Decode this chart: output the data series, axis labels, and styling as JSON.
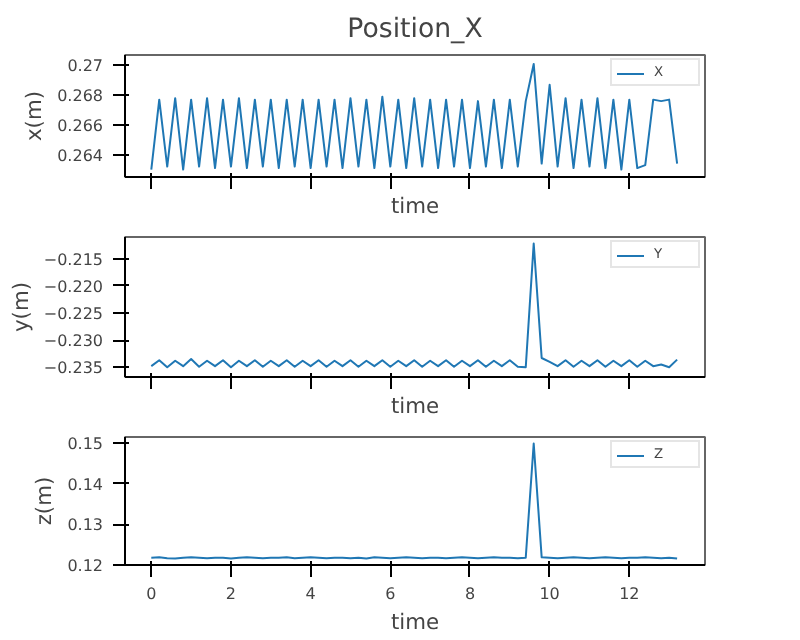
{
  "chart_data": [
    {
      "type": "line",
      "title": "Position_X",
      "xlabel": "time",
      "ylabel": "x(m)",
      "legend": "top right",
      "tick_labels": "y",
      "xlim": [
        -0.66,
        13.9
      ],
      "xticks": [
        0,
        2,
        4,
        6,
        8,
        10,
        12
      ],
      "ylim": [
        0.2625,
        0.2707
      ],
      "yticks": [
        0.264,
        0.266,
        0.268,
        0.27
      ],
      "series": [
        {
          "name": "X",
          "color": "#1f77b4",
          "x": [
            0,
            0.2,
            0.4,
            0.6,
            0.8,
            1,
            1.2,
            1.4,
            1.6,
            1.8,
            2,
            2.2,
            2.4,
            2.6,
            2.8,
            3,
            3.2,
            3.4,
            3.6,
            3.8,
            4,
            4.2,
            4.4,
            4.6,
            4.8,
            5,
            5.2,
            5.4,
            5.6,
            5.8,
            6,
            6.2,
            6.4,
            6.6,
            6.8,
            7,
            7.2,
            7.4,
            7.6,
            7.8,
            8,
            8.2,
            8.4,
            8.6,
            8.8,
            9,
            9.2,
            9.4,
            9.6,
            9.8,
            10,
            10.2,
            10.4,
            10.6,
            10.8,
            11,
            11.2,
            11.4,
            11.6,
            11.8,
            12,
            12.2,
            12.4,
            12.6,
            12.8,
            13,
            13.2
          ],
          "values": [
            0.263,
            0.2677,
            0.2632,
            0.2678,
            0.263,
            0.2677,
            0.2632,
            0.2678,
            0.2631,
            0.2677,
            0.2632,
            0.2678,
            0.2631,
            0.2677,
            0.2632,
            0.2677,
            0.2631,
            0.2677,
            0.2632,
            0.2677,
            0.2631,
            0.2677,
            0.2632,
            0.2677,
            0.2631,
            0.2678,
            0.2632,
            0.2677,
            0.2631,
            0.2679,
            0.2632,
            0.2677,
            0.2631,
            0.2678,
            0.2632,
            0.2677,
            0.2631,
            0.2677,
            0.2632,
            0.2677,
            0.2631,
            0.2676,
            0.2632,
            0.2677,
            0.2631,
            0.2677,
            0.2632,
            0.2676,
            0.2701,
            0.2634,
            0.2687,
            0.2632,
            0.2678,
            0.2631,
            0.2677,
            0.2632,
            0.2678,
            0.2631,
            0.2677,
            0.263,
            0.2677,
            0.2631,
            0.2633,
            0.2677,
            0.2676,
            0.2677,
            0.2634
          ]
        }
      ]
    },
    {
      "type": "line",
      "xlabel": "time",
      "ylabel": "y(m)",
      "legend": "top right",
      "tick_labels": "y",
      "xlim": [
        -0.66,
        13.9
      ],
      "xticks": [
        0,
        2,
        4,
        6,
        8,
        10,
        12
      ],
      "ylim": [
        -0.2368,
        -0.211
      ],
      "yticks": [
        {
          "value": -0.235,
          "label": "−0.235"
        },
        {
          "value": -0.23,
          "label": "−0.230"
        },
        {
          "value": -0.225,
          "label": "−0.225"
        },
        {
          "value": -0.22,
          "label": "−0.220"
        },
        {
          "value": -0.215,
          "label": "−0.215"
        }
      ],
      "series": [
        {
          "name": "Y",
          "color": "#1f77b4",
          "x": [
            0,
            0.2,
            0.4,
            0.6,
            0.8,
            1,
            1.2,
            1.4,
            1.6,
            1.8,
            2,
            2.2,
            2.4,
            2.6,
            2.8,
            3,
            3.2,
            3.4,
            3.6,
            3.8,
            4,
            4.2,
            4.4,
            4.6,
            4.8,
            5,
            5.2,
            5.4,
            5.6,
            5.8,
            6,
            6.2,
            6.4,
            6.6,
            6.8,
            7,
            7.2,
            7.4,
            7.6,
            7.8,
            8,
            8.2,
            8.4,
            8.6,
            8.8,
            9,
            9.2,
            9.4,
            9.6,
            9.8,
            10,
            10.2,
            10.4,
            10.6,
            10.8,
            11,
            11.2,
            11.4,
            11.6,
            11.8,
            12,
            12.2,
            12.4,
            12.6,
            12.8,
            13,
            13.2
          ],
          "values": [
            -0.2348,
            -0.2337,
            -0.235,
            -0.2338,
            -0.2348,
            -0.2335,
            -0.2349,
            -0.2338,
            -0.2348,
            -0.2337,
            -0.235,
            -0.2338,
            -0.2348,
            -0.2337,
            -0.2349,
            -0.2338,
            -0.2348,
            -0.2337,
            -0.2349,
            -0.2338,
            -0.2348,
            -0.2337,
            -0.2349,
            -0.2338,
            -0.2348,
            -0.2337,
            -0.2349,
            -0.2338,
            -0.2348,
            -0.2337,
            -0.2349,
            -0.2338,
            -0.2348,
            -0.2337,
            -0.2349,
            -0.2338,
            -0.2348,
            -0.2337,
            -0.2349,
            -0.2338,
            -0.2348,
            -0.2337,
            -0.2349,
            -0.2338,
            -0.2348,
            -0.2337,
            -0.2349,
            -0.235,
            -0.2122,
            -0.2333,
            -0.234,
            -0.2348,
            -0.2337,
            -0.2349,
            -0.2338,
            -0.2348,
            -0.2337,
            -0.2349,
            -0.2338,
            -0.2348,
            -0.2337,
            -0.2349,
            -0.2338,
            -0.2348,
            -0.2345,
            -0.235,
            -0.2336
          ]
        }
      ]
    },
    {
      "type": "line",
      "xlabel": "time",
      "ylabel": "z(m)",
      "legend": "top right",
      "xlim": [
        -0.66,
        13.9
      ],
      "xticks": [
        0,
        2,
        4,
        6,
        8,
        10,
        12
      ],
      "ylim": [
        0.1199,
        0.1516
      ],
      "yticks": [
        0.12,
        0.13,
        0.14,
        0.15
      ],
      "series": [
        {
          "name": "Z",
          "color": "#1f77b4",
          "x": [
            0,
            0.2,
            0.4,
            0.6,
            0.8,
            1,
            1.2,
            1.4,
            1.6,
            1.8,
            2,
            2.2,
            2.4,
            2.6,
            2.8,
            3,
            3.2,
            3.4,
            3.6,
            3.8,
            4,
            4.2,
            4.4,
            4.6,
            4.8,
            5,
            5.2,
            5.4,
            5.6,
            5.8,
            6,
            6.2,
            6.4,
            6.6,
            6.8,
            7,
            7.2,
            7.4,
            7.6,
            7.8,
            8,
            8.2,
            8.4,
            8.6,
            8.8,
            9,
            9.2,
            9.4,
            9.6,
            9.8,
            10,
            10.2,
            10.4,
            10.6,
            10.8,
            11,
            11.2,
            11.4,
            11.6,
            11.8,
            12,
            12.2,
            12.4,
            12.6,
            12.8,
            13,
            13.2
          ],
          "values": [
            0.1217,
            0.1218,
            0.1216,
            0.1215,
            0.1217,
            0.1218,
            0.1217,
            0.1216,
            0.1217,
            0.1217,
            0.1215,
            0.1217,
            0.1218,
            0.1217,
            0.1216,
            0.1217,
            0.1217,
            0.1218,
            0.1216,
            0.1217,
            0.1218,
            0.1217,
            0.1216,
            0.1217,
            0.1217,
            0.1216,
            0.1217,
            0.1215,
            0.1218,
            0.1217,
            0.1216,
            0.1217,
            0.1218,
            0.1217,
            0.1216,
            0.1217,
            0.1217,
            0.1216,
            0.1217,
            0.1218,
            0.1217,
            0.1216,
            0.1217,
            0.1218,
            0.1217,
            0.1217,
            0.1216,
            0.1217,
            0.15,
            0.1218,
            0.1217,
            0.1216,
            0.1217,
            0.1218,
            0.1217,
            0.1216,
            0.1217,
            0.1218,
            0.1217,
            0.1216,
            0.1217,
            0.1217,
            0.1218,
            0.1217,
            0.1216,
            0.1217,
            0.1215
          ]
        }
      ]
    }
  ]
}
